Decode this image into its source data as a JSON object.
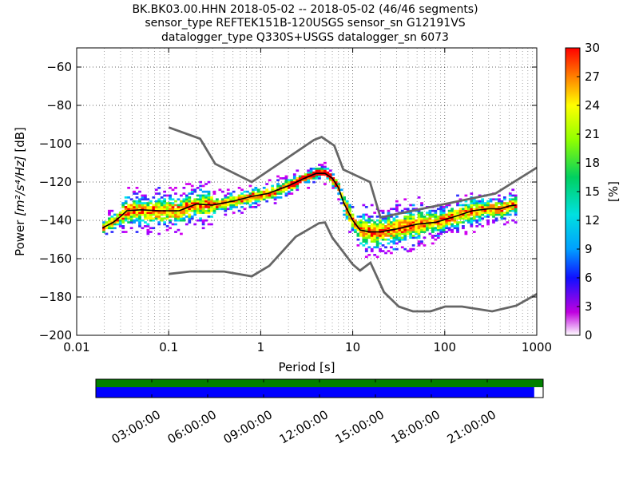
{
  "chart_data": {
    "type": "heatmap",
    "title_lines": [
      "BK.BK03.00.HHN   2018-05-02 -- 2018-05-02  (46/46 segments)",
      "sensor_type REFTEK151B-120USGS sensor_sn G12191VS",
      "datalogger_type Q330S+USGS datalogger_sn 6073"
    ],
    "xlabel": "Period [s]",
    "ylabel_prefix": "Power ",
    "ylabel_units": "[m²/s⁴/Hz]",
    "ylabel_suffix": " [dB]",
    "x_scale": "log",
    "xlim": [
      0.01,
      1000
    ],
    "ylim": [
      -200,
      -50
    ],
    "x_ticks": [
      0.01,
      0.1,
      1,
      10,
      100,
      1000
    ],
    "x_tick_labels": [
      "0.01",
      "0.1",
      "1",
      "10",
      "100",
      "1000"
    ],
    "y_ticks": [
      -200,
      -180,
      -160,
      -140,
      -120,
      -100,
      -80,
      -60
    ],
    "y_tick_labels": [
      "−200",
      "−180",
      "−160",
      "−140",
      "−120",
      "−100",
      "−80",
      "−60"
    ],
    "grid": true,
    "colorbar": {
      "label": "[%]",
      "range": [
        0,
        30
      ],
      "ticks": [
        0,
        3,
        6,
        9,
        12,
        15,
        18,
        21,
        24,
        27,
        30
      ],
      "tick_labels": [
        "0",
        "3",
        "6",
        "9",
        "12",
        "15",
        "18",
        "21",
        "24",
        "27",
        "30"
      ],
      "colormap": "pqlx"
    },
    "noise_models": {
      "high": {
        "x": [
          0.1,
          0.22,
          0.32,
          0.8,
          3.8,
          4.6,
          6.3,
          7.9,
          15.4,
          20,
          354.8,
          1000
        ],
        "y": [
          -91.5,
          -97.4,
          -110.5,
          -120,
          -98,
          -96.5,
          -101,
          -113.5,
          -120,
          -138.5,
          -126,
          -112.5
        ]
      },
      "low": {
        "x": [
          0.1,
          0.17,
          0.4,
          0.8,
          1.24,
          2.4,
          4.3,
          5,
          6,
          10,
          12,
          15.6,
          21.9,
          31.6,
          45,
          70,
          101,
          154,
          328,
          600,
          1000
        ],
        "y": [
          -168,
          -166.7,
          -166.7,
          -169.2,
          -163.7,
          -148.6,
          -141.5,
          -141.1,
          -149,
          -163,
          -166.2,
          -162.1,
          -177.5,
          -185,
          -187.5,
          -187.5,
          -185,
          -185,
          -187.5,
          -184.5,
          -178.5
        ]
      }
    },
    "mode_curve": {
      "x": [
        0.019,
        0.025,
        0.03,
        0.035,
        0.05,
        0.08,
        0.13,
        0.2,
        0.3,
        0.5,
        0.8,
        1.2,
        2,
        3,
        4,
        5,
        6,
        7,
        8,
        10,
        12,
        15,
        20,
        30,
        50,
        80,
        120,
        200,
        300,
        400,
        500,
        600
      ],
      "y": [
        -144,
        -141,
        -138,
        -135,
        -134.5,
        -135,
        -135,
        -131.5,
        -132,
        -130,
        -127.5,
        -126,
        -122,
        -118,
        -115.5,
        -115.5,
        -118,
        -123,
        -131,
        -140,
        -145,
        -146,
        -146,
        -144.5,
        -142,
        -141,
        -138.5,
        -135,
        -134,
        -134,
        -132.5,
        -132
      ]
    },
    "time_axis": {
      "tick_labels": [
        "03:00:00",
        "06:00:00",
        "09:00:00",
        "12:00:00",
        "15:00:00",
        "18:00:00",
        "21:00:00"
      ],
      "data_coverage_fraction": 1.0,
      "gap_coverage_fraction": 0.98,
      "colors": {
        "data": "#008000",
        "gaps": "#0000ff"
      }
    }
  }
}
